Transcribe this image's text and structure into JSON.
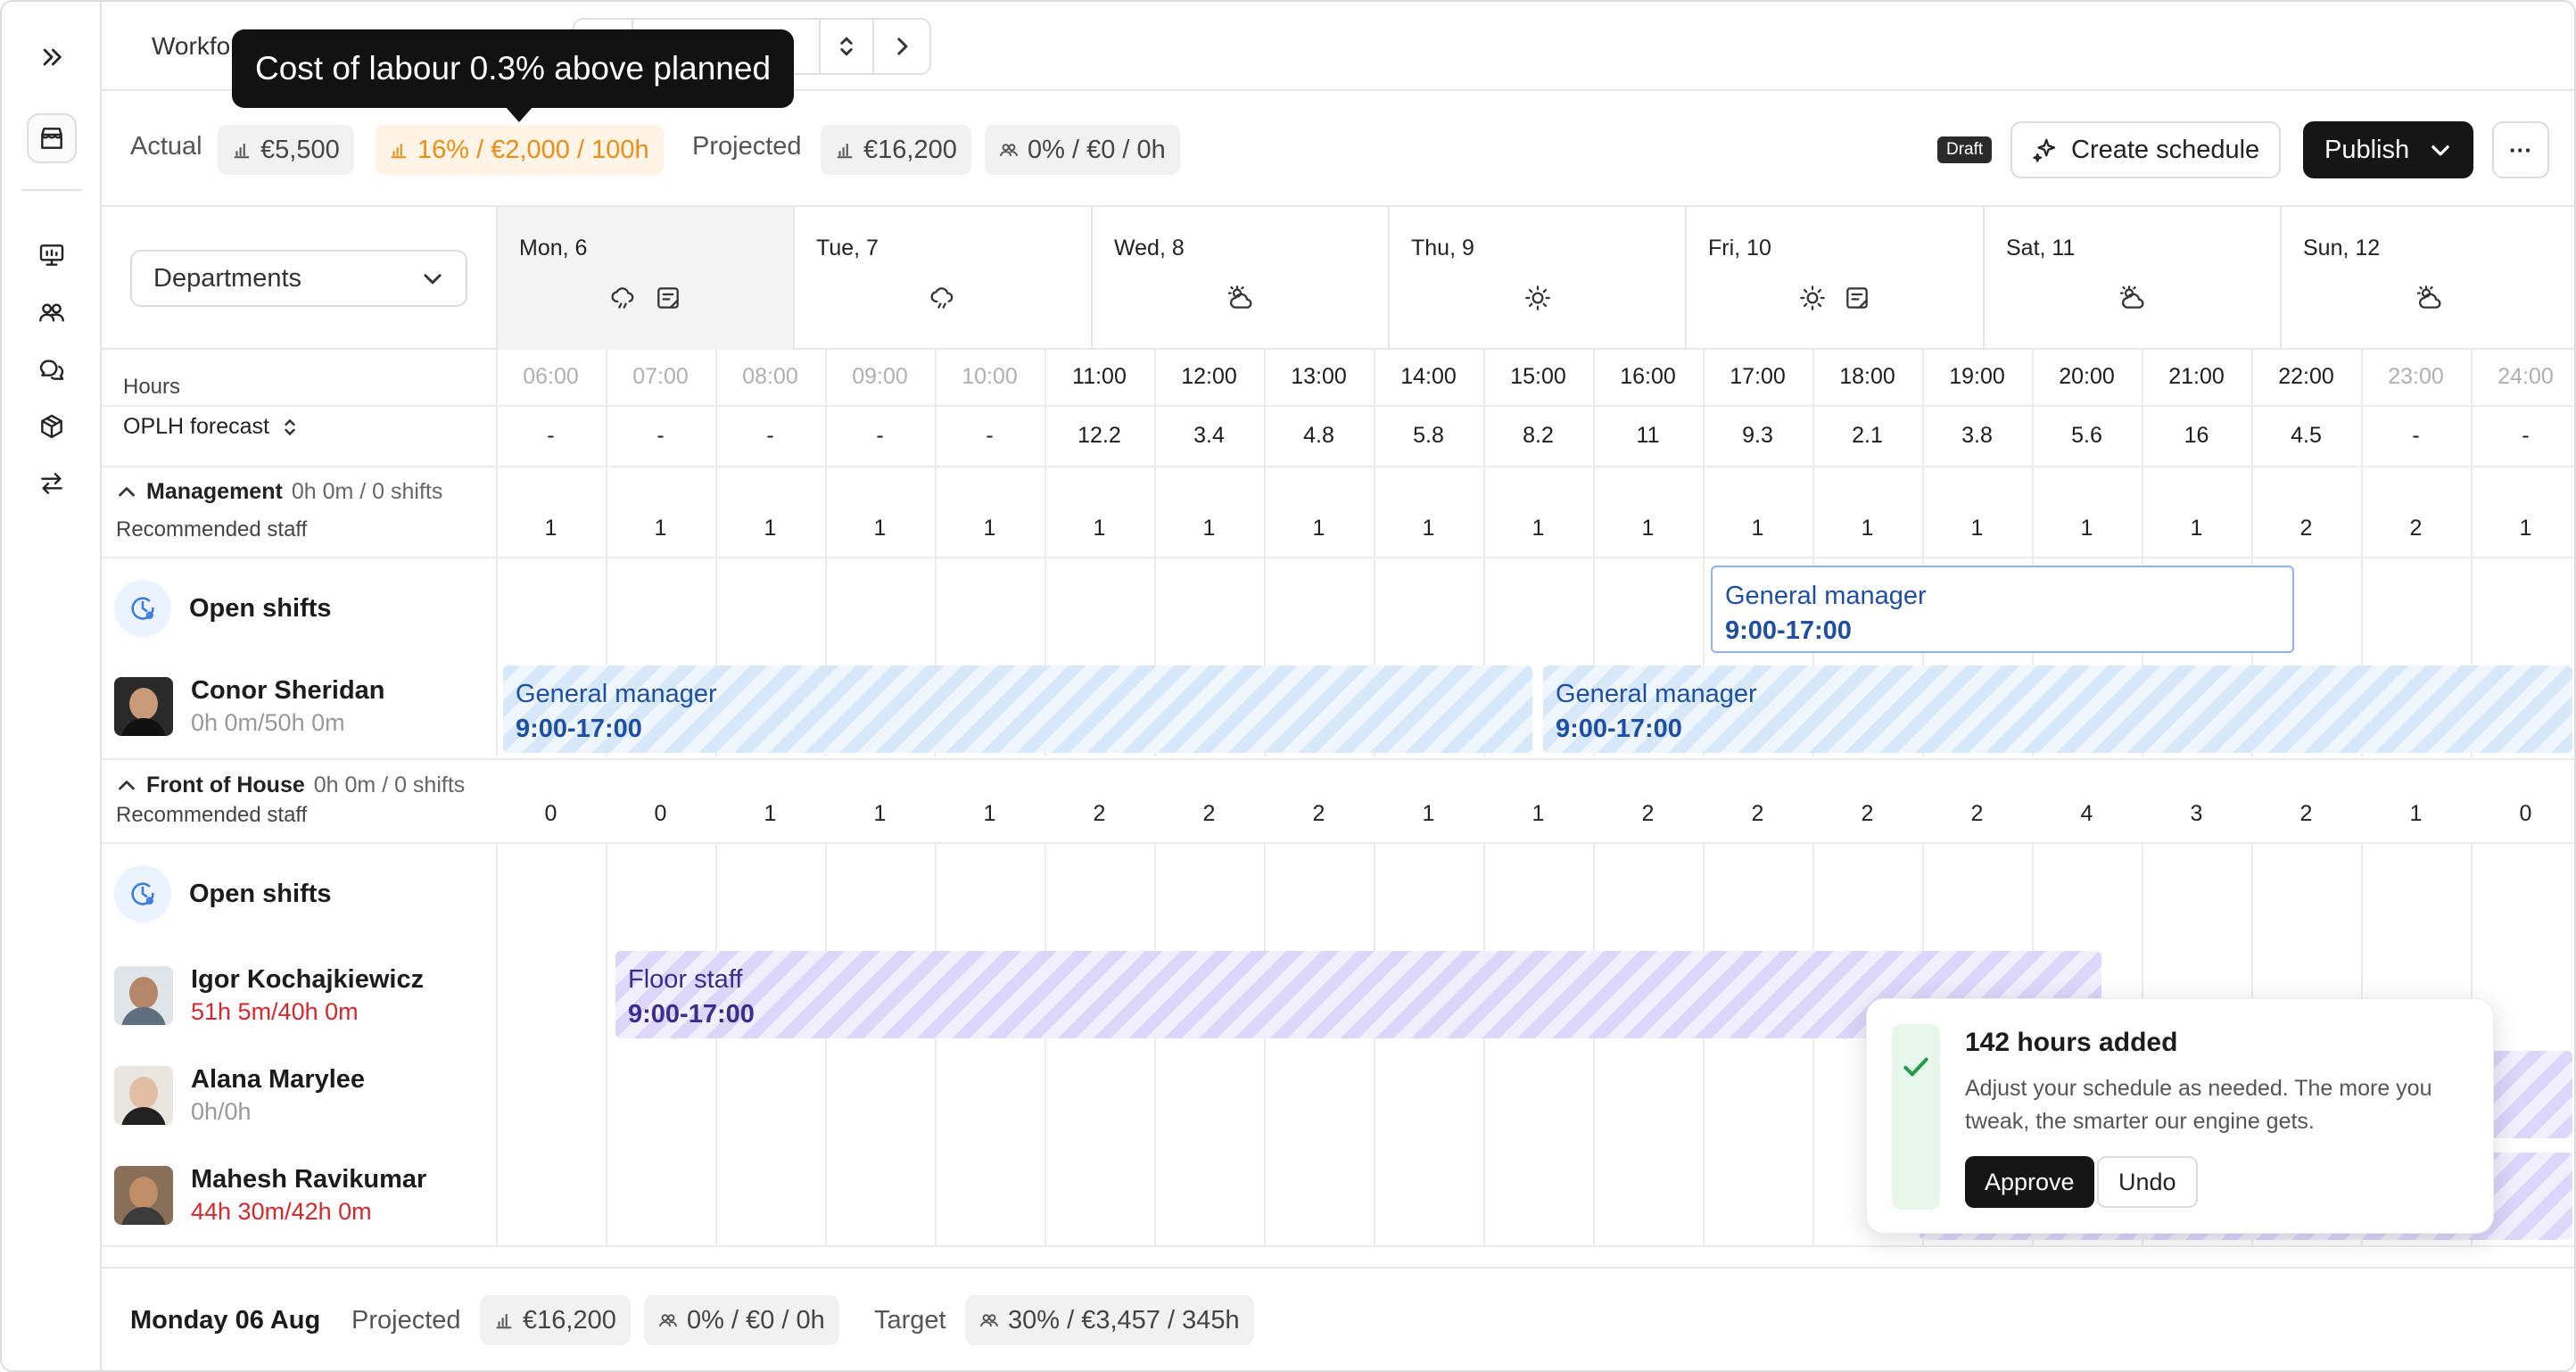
{
  "rail": {
    "icons": [
      "expand-icon",
      "store-icon",
      "presentation-icon",
      "users-icon",
      "chat-icon",
      "box-icon",
      "transfer-icon"
    ]
  },
  "topbar": {
    "breadcrumb": "Workfo",
    "tooltip": "Cost of labour 0.3% above planned"
  },
  "summary": {
    "actual_label": "Actual",
    "actual_value": "€5,500",
    "actual_delta": "16% / €2,000 / 100h",
    "projected_label": "Projected",
    "projected_value": "€16,200",
    "projected_delta": "0% / €0 / 0h",
    "draft_badge": "Draft",
    "create_label": "Create schedule",
    "publish_label": "Publish",
    "more_label": "···"
  },
  "filters": {
    "departments": "Departments"
  },
  "days": [
    {
      "label": "Mon, 6",
      "icons": [
        "cloud-rain-icon",
        "note-icon"
      ]
    },
    {
      "label": "Tue, 7",
      "icons": [
        "cloud-rain-icon"
      ]
    },
    {
      "label": "Wed, 8",
      "icons": [
        "cloud-sun-icon"
      ]
    },
    {
      "label": "Thu, 9",
      "icons": [
        "sun-icon"
      ]
    },
    {
      "label": "Fri, 10",
      "icons": [
        "sun-icon",
        "note-icon"
      ]
    },
    {
      "label": "Sat, 11",
      "icons": [
        "cloud-sun-icon"
      ]
    },
    {
      "label": "Sun, 12",
      "icons": [
        "cloud-sun-icon"
      ]
    }
  ],
  "hours": {
    "label": "Hours",
    "forecast_label": "OPLH forecast",
    "times": [
      "06:00",
      "07:00",
      "08:00",
      "09:00",
      "10:00",
      "11:00",
      "12:00",
      "13:00",
      "14:00",
      "15:00",
      "16:00",
      "17:00",
      "18:00",
      "19:00",
      "20:00",
      "21:00",
      "22:00",
      "23:00",
      "24:00"
    ],
    "forecast": [
      "-",
      "-",
      "-",
      "-",
      "-",
      "12.2",
      "3.4",
      "4.8",
      "5.8",
      "8.2",
      "11",
      "9.3",
      "2.1",
      "3.8",
      "5.6",
      "16",
      "4.5",
      "-",
      "-"
    ]
  },
  "management": {
    "title": "Management",
    "meta": "0h 0m / 0 shifts",
    "recommended_label": "Recommended staff",
    "recommended": [
      "1",
      "1",
      "1",
      "1",
      "1",
      "1",
      "1",
      "1",
      "1",
      "1",
      "1",
      "1",
      "1",
      "1",
      "1",
      "1",
      "2",
      "2",
      "1"
    ],
    "open_shifts_label": "Open shifts",
    "open_shift": {
      "role": "General manager",
      "time": "9:00-17:00"
    },
    "staff": [
      {
        "name": "Conor Sheridan",
        "hours": "0h 0m/50h 0m"
      }
    ],
    "shifts": [
      {
        "role": "General manager",
        "time": "9:00-17:00"
      },
      {
        "role": "General manager",
        "time": "9:00-17:00"
      }
    ]
  },
  "front_of_house": {
    "title": "Front of House",
    "meta": "0h 0m / 0 shifts",
    "recommended_label": "Recommended staff",
    "recommended": [
      "0",
      "0",
      "1",
      "1",
      "1",
      "2",
      "2",
      "2",
      "1",
      "1",
      "2",
      "2",
      "2",
      "2",
      "4",
      "3",
      "2",
      "1",
      "0"
    ],
    "open_shifts_label": "Open shifts",
    "staff": [
      {
        "name": "Igor Kochajkiewicz",
        "hours": "51h 5m/40h 0m"
      },
      {
        "name": "Alana Marylee",
        "hours": "0h/0h"
      },
      {
        "name": "Mahesh Ravikumar",
        "hours": "44h 30m/42h 0m"
      }
    ],
    "shift": {
      "role": "Floor staff",
      "time": "9:00-17:00"
    }
  },
  "toast": {
    "title": "142 hours added",
    "body": "Adjust your schedule as needed. The more you tweak, the smarter our engine gets.",
    "approve_label": "Approve",
    "undo_label": "Undo"
  },
  "footer": {
    "date": "Monday 06 Aug",
    "projected_label": "Projected",
    "projected_value": "€16,200",
    "projected_delta": "0% / €0 / 0h",
    "target_label": "Target",
    "target_value": "30% / €3,457 / 345h"
  },
  "colors": {
    "accent_blue": "#1e4fa3",
    "accent_purple": "#3a2d8c",
    "warning": "#f08c16",
    "over_hours": "#d8262c",
    "success": "#1f9d4c"
  }
}
